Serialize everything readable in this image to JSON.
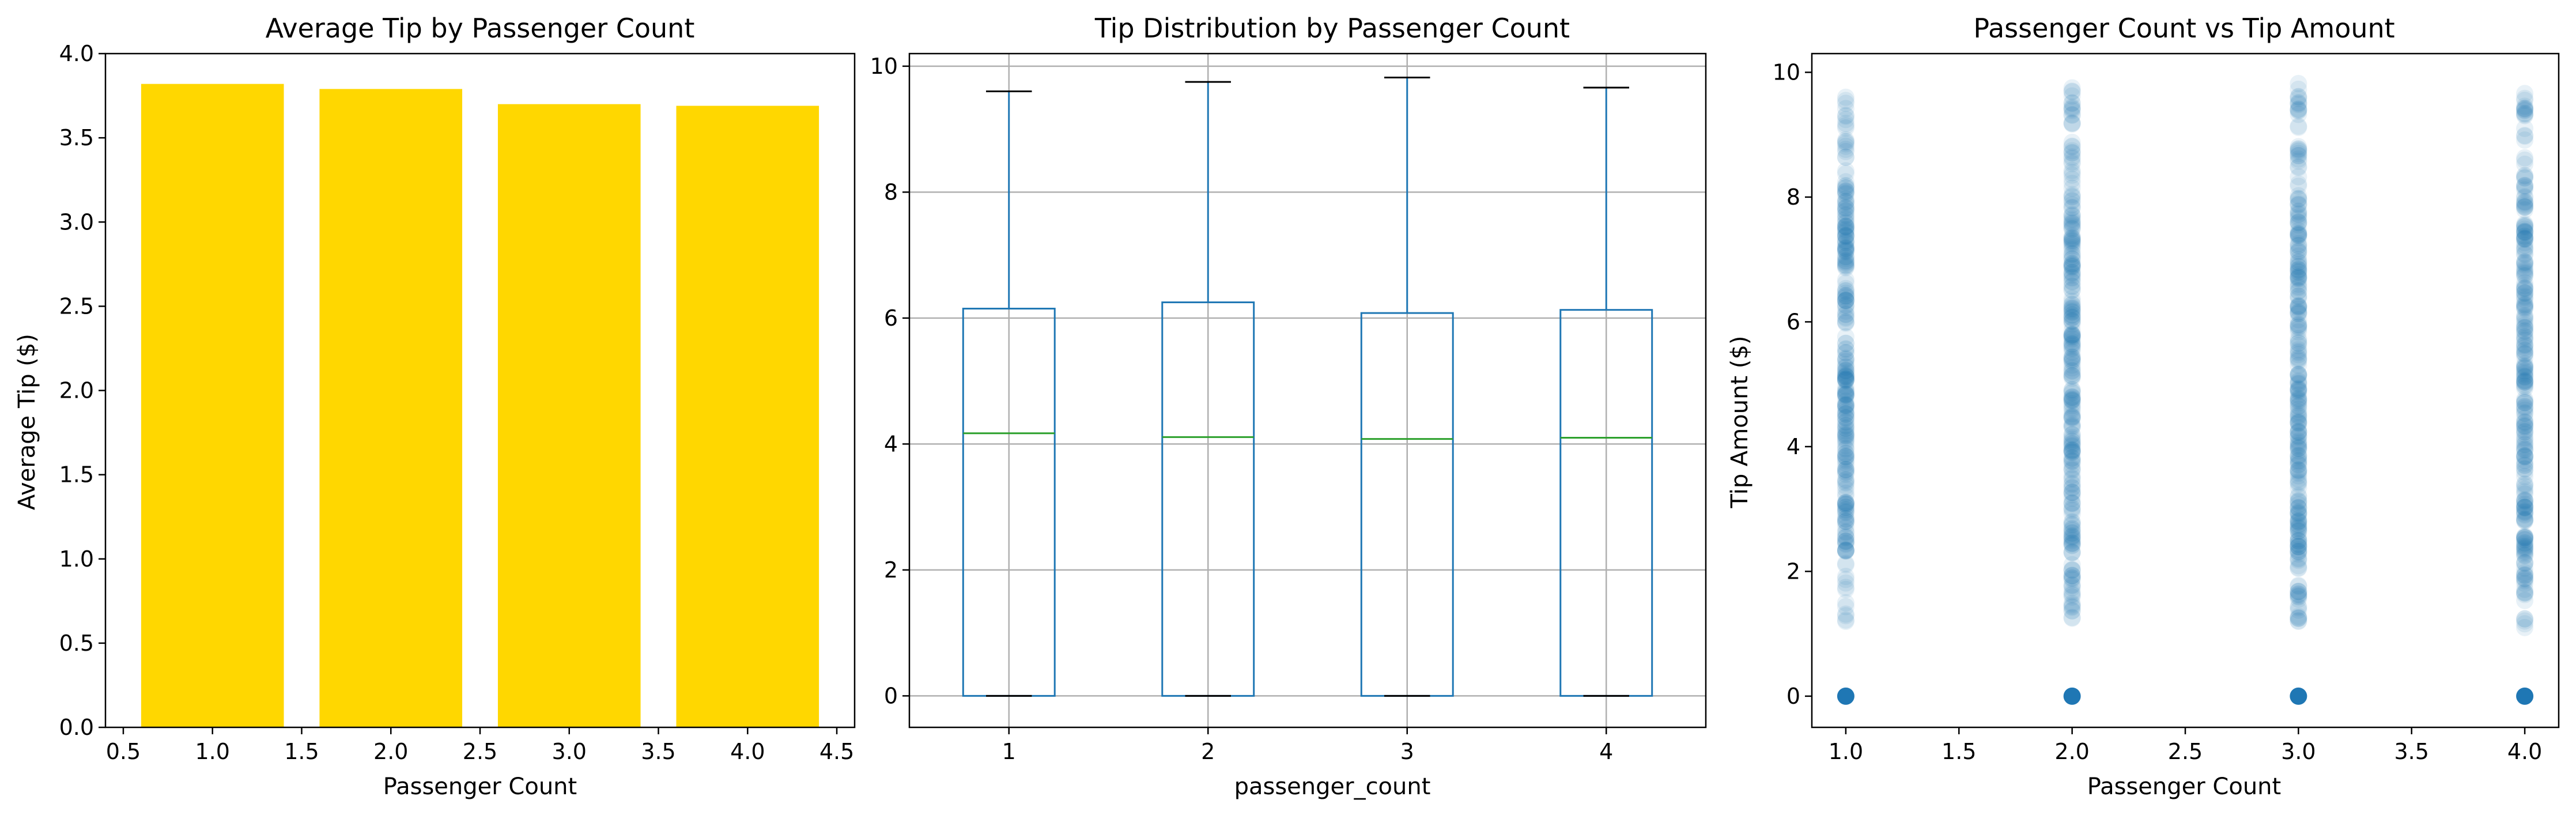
{
  "colors": {
    "bar": "#FFD700",
    "box": "#1f77b4",
    "median": "#2ca02c",
    "scatter": "#1f77b4"
  },
  "chart_data": [
    {
      "type": "bar",
      "title": "Average Tip by Passenger Count",
      "xlabel": "Passenger Count",
      "ylabel": "Average Tip ($)",
      "x": [
        1.0,
        2.0,
        3.0,
        4.0
      ],
      "values": [
        3.82,
        3.79,
        3.7,
        3.69
      ],
      "bar_width": 0.8,
      "xlim": [
        0.4,
        4.6
      ],
      "ylim": [
        0,
        4.0
      ],
      "xticks": [
        0.5,
        1.0,
        1.5,
        2.0,
        2.5,
        3.0,
        3.5,
        4.0,
        4.5
      ],
      "xtick_labels": [
        "0.5",
        "1.0",
        "1.5",
        "2.0",
        "2.5",
        "3.0",
        "3.5",
        "4.0",
        "4.5"
      ],
      "yticks": [
        0.0,
        0.5,
        1.0,
        1.5,
        2.0,
        2.5,
        3.0,
        3.5,
        4.0
      ],
      "ytick_labels": [
        "0.0",
        "0.5",
        "1.0",
        "1.5",
        "2.0",
        "2.5",
        "3.0",
        "3.5",
        "4.0"
      ],
      "grid": false
    },
    {
      "type": "box",
      "title": "Tip Distribution by Passenger Count",
      "xlabel": "passenger_count",
      "ylabel": "",
      "categories": [
        "1",
        "2",
        "3",
        "4"
      ],
      "boxes": [
        {
          "whislo": 0,
          "q1": 0,
          "med": 4.17,
          "q3": 6.15,
          "whishi": 9.6
        },
        {
          "whislo": 0,
          "q1": 0,
          "med": 4.11,
          "q3": 6.25,
          "whishi": 9.75
        },
        {
          "whislo": 0,
          "q1": 0,
          "med": 4.08,
          "q3": 6.08,
          "whishi": 9.82
        },
        {
          "whislo": 0,
          "q1": 0,
          "med": 4.1,
          "q3": 6.13,
          "whishi": 9.66
        }
      ],
      "ylim": [
        -0.5,
        10.2
      ],
      "yticks": [
        0,
        2,
        4,
        6,
        8,
        10
      ],
      "ytick_labels": [
        "0",
        "2",
        "4",
        "6",
        "8",
        "10"
      ],
      "grid": true
    },
    {
      "type": "scatter",
      "title": "Passenger Count vs Tip Amount",
      "xlabel": "Passenger Count",
      "ylabel": "Tip Amount ($)",
      "x_values": [
        1.0,
        2.0,
        3.0,
        4.0
      ],
      "zero_tip_points": [
        [
          1.0,
          0
        ],
        [
          2.0,
          0
        ],
        [
          3.0,
          0
        ],
        [
          4.0,
          0
        ]
      ],
      "tip_ranges": [
        {
          "x": 1.0,
          "min": 1.2,
          "max": 9.6
        },
        {
          "x": 2.0,
          "min": 1.25,
          "max": 9.75
        },
        {
          "x": 3.0,
          "min": 1.2,
          "max": 9.82
        },
        {
          "x": 4.0,
          "min": 1.1,
          "max": 9.66
        }
      ],
      "xlim": [
        0.85,
        4.15
      ],
      "ylim": [
        -0.5,
        10.3
      ],
      "xticks": [
        1.0,
        1.5,
        2.0,
        2.5,
        3.0,
        3.5,
        4.0
      ],
      "xtick_labels": [
        "1.0",
        "1.5",
        "2.0",
        "2.5",
        "3.0",
        "3.5",
        "4.0"
      ],
      "yticks": [
        0,
        2,
        4,
        6,
        8,
        10
      ],
      "ytick_labels": [
        "0",
        "2",
        "4",
        "6",
        "8",
        "10"
      ],
      "alpha": 0.1,
      "grid": false
    }
  ]
}
